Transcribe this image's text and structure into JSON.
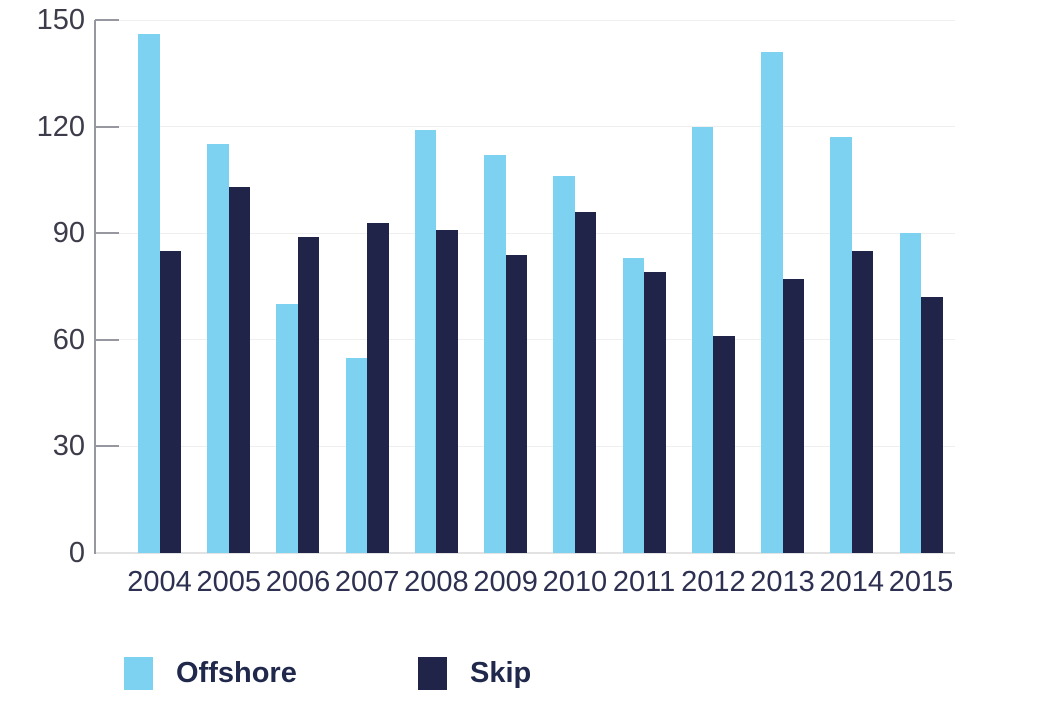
{
  "chart_data": {
    "type": "bar",
    "title": "",
    "xlabel": "",
    "ylabel": "",
    "categories": [
      "2004",
      "2005",
      "2006",
      "2007",
      "2008",
      "2009",
      "2010",
      "2011",
      "2012",
      "2013",
      "2014",
      "2015"
    ],
    "series": [
      {
        "name": "Offshore",
        "color": "#7dd1f1",
        "values": [
          146,
          115,
          70,
          55,
          119,
          112,
          106,
          83,
          120,
          141,
          117,
          90
        ]
      },
      {
        "name": "Skip",
        "color": "#212449",
        "values": [
          85,
          103,
          89,
          93,
          91,
          84,
          96,
          79,
          61,
          77,
          85,
          72
        ]
      }
    ],
    "ylim": [
      0,
      150
    ],
    "y_ticks": [
      0,
      30,
      60,
      90,
      120,
      150
    ],
    "grid": true,
    "legend_position": "bottom-left"
  },
  "colors": {
    "background": "#ffffff",
    "gridline": "#efefef",
    "axis": "#97979f",
    "baseline": "#e2e2e2",
    "y_tick_label": "#3c3c4a",
    "x_tick_label": "#2d3050",
    "legend_text": "#20294c"
  }
}
